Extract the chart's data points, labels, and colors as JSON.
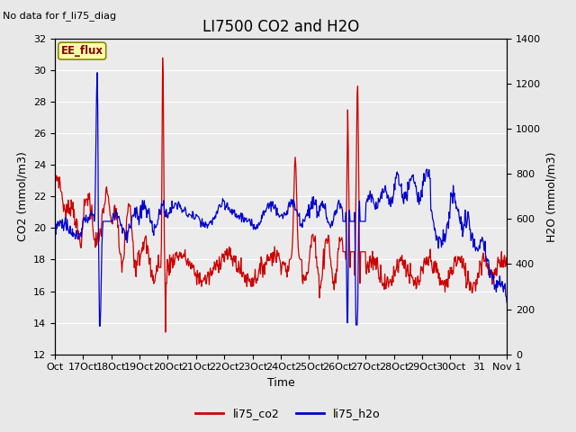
{
  "title": "LI7500 CO2 and H2O",
  "subtitle": "No data for f_li75_diag",
  "xlabel": "Time",
  "ylabel_left": "CO2 (mmol/m3)",
  "ylabel_right": "H2O (mmol/m3)",
  "ylim_left": [
    12,
    32
  ],
  "ylim_right": [
    0,
    1400
  ],
  "yticks_left": [
    12,
    14,
    16,
    18,
    20,
    22,
    24,
    26,
    28,
    30,
    32
  ],
  "yticks_right": [
    0,
    200,
    400,
    600,
    800,
    1000,
    1200,
    1400
  ],
  "xtick_labels": [
    "Oct",
    "17Oct",
    "18Oct",
    "19Oct",
    "20Oct",
    "21Oct",
    "22Oct",
    "23Oct",
    "24Oct",
    "25Oct",
    "26Oct",
    "27Oct",
    "28Oct",
    "29Oct",
    "30Oct",
    "31",
    "Nov 1"
  ],
  "color_co2": "#cc0000",
  "color_h2o": "#0000cc",
  "legend_label_co2": "li75_co2",
  "legend_label_h2o": "li75_h2o",
  "ee_flux_label": "EE_flux",
  "fig_bg": "#e8e8e8",
  "plot_bg": "#ebebeb",
  "grid_color": "#ffffff",
  "title_fontsize": 12,
  "label_fontsize": 9,
  "tick_fontsize": 8,
  "legend_fontsize": 9
}
